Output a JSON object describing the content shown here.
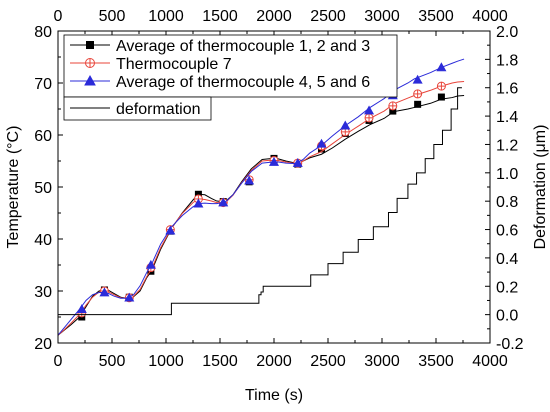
{
  "chart_data": {
    "type": "line",
    "xlabel": "Time (s)",
    "ylabel_left": "Temperature (°C)",
    "ylabel_right": "Deformation (μm)",
    "xlim": [
      0,
      4000
    ],
    "ylim_left": [
      20,
      80
    ],
    "ylim_right": [
      -0.2,
      2.0
    ],
    "x_ticks": [
      0,
      500,
      1000,
      1500,
      2000,
      2500,
      3000,
      3500,
      4000
    ],
    "y_left_ticks": [
      20,
      30,
      40,
      50,
      60,
      70,
      80
    ],
    "y_right_ticks": [
      -0.2,
      0.0,
      0.2,
      0.4,
      0.6,
      0.8,
      1.0,
      1.2,
      1.4,
      1.6,
      1.8,
      2.0
    ],
    "top_axis_mirrors_x": true,
    "grid": false,
    "legend_top": {
      "placement": "top-left",
      "entries": [
        "Average of thermocouple 1, 2 and 3",
        "Thermocouple 7",
        "Average of thermocouple 4, 5 and 6"
      ]
    },
    "legend_bottom": {
      "placement": "upper-left",
      "entries": [
        "deformation"
      ]
    },
    "series": [
      {
        "name": "Average of thermocouple 1, 2 and 3",
        "axis": "left",
        "color": "#000000",
        "marker": "square",
        "x": [
          0,
          60,
          120,
          200,
          260,
          320,
          380,
          430,
          470,
          520,
          580,
          640,
          700,
          760,
          820,
          870,
          950,
          1050,
          1150,
          1250,
          1300,
          1360,
          1420,
          1470,
          1520,
          1560,
          1620,
          1700,
          1790,
          1890,
          1990,
          2040,
          2110,
          2200,
          2270,
          2330,
          2440,
          2540,
          2660,
          2780,
          2890,
          3020,
          3110,
          3240,
          3300,
          3450,
          3550,
          3650,
          3700,
          3760
        ],
        "y": [
          21.5,
          22.5,
          23.5,
          25,
          27,
          29,
          30,
          30.2,
          30.1,
          29.5,
          28.8,
          28.6,
          28.9,
          30,
          32.5,
          34,
          38,
          42,
          45,
          47.5,
          48.6,
          48.5,
          47.8,
          47.3,
          47.2,
          47.4,
          48.5,
          51,
          53.5,
          55.3,
          55.5,
          55.4,
          55,
          54.6,
          55,
          55.6,
          56.3,
          57.5,
          59.2,
          60.7,
          62,
          63.2,
          64.5,
          65,
          65.3,
          66.1,
          66.9,
          67.2,
          67.5,
          67.6
        ],
        "markers_x": [
          220,
          430,
          660,
          860,
          1040,
          1300,
          1530,
          1770,
          2000,
          2220,
          2440,
          2660,
          2880,
          3100,
          3330,
          3550
        ],
        "markers_y": [
          25,
          30.2,
          28.8,
          33.8,
          41.5,
          48.6,
          47.2,
          51,
          55.5,
          54.4,
          57.3,
          60.3,
          62.8,
          64.6,
          65.9,
          67.3
        ]
      },
      {
        "name": "Thermocouple 7",
        "axis": "left",
        "color": "#e8443a",
        "marker": "circle-plus",
        "x": [
          0,
          60,
          120,
          200,
          260,
          320,
          380,
          430,
          470,
          520,
          580,
          640,
          700,
          760,
          820,
          870,
          950,
          1050,
          1150,
          1250,
          1300,
          1360,
          1420,
          1470,
          1520,
          1560,
          1620,
          1700,
          1790,
          1890,
          1990,
          2040,
          2110,
          2200,
          2270,
          2330,
          2440,
          2540,
          2660,
          2780,
          2890,
          3020,
          3110,
          3240,
          3300,
          3450,
          3550,
          3650,
          3700,
          3760
        ],
        "y": [
          21.5,
          22.6,
          23.8,
          25.5,
          27.3,
          28.8,
          29.8,
          30,
          29.8,
          29.3,
          28.7,
          28.6,
          29,
          30.3,
          32.7,
          34.4,
          38.3,
          42.1,
          44.9,
          47,
          47.7,
          47.6,
          47.3,
          47,
          47,
          47.2,
          48.4,
          50.8,
          53.2,
          55,
          55.2,
          55.1,
          54.8,
          54.5,
          55,
          55.8,
          56.8,
          58.3,
          60.1,
          61.7,
          63.2,
          64.6,
          66,
          67.1,
          67.6,
          68.6,
          69.4,
          70,
          70.2,
          70.3
        ],
        "markers_x": [
          220,
          430,
          660,
          860,
          1040,
          1300,
          1530,
          1770,
          2000,
          2220,
          2440,
          2660,
          2880,
          3100,
          3330,
          3550
        ],
        "markers_y": [
          25.8,
          30,
          28.7,
          34.5,
          41.8,
          47.7,
          47,
          51.4,
          55.1,
          54.6,
          57.9,
          60.6,
          63.3,
          65.6,
          67.9,
          69.4
        ]
      },
      {
        "name": "Average of thermocouple 4, 5 and 6",
        "axis": "left",
        "color": "#2b2bd9",
        "marker": "triangle",
        "x": [
          0,
          60,
          120,
          200,
          260,
          320,
          380,
          430,
          470,
          520,
          580,
          640,
          700,
          760,
          820,
          870,
          950,
          1050,
          1150,
          1250,
          1300,
          1360,
          1420,
          1470,
          1520,
          1560,
          1620,
          1700,
          1790,
          1890,
          1990,
          2040,
          2110,
          2200,
          2270,
          2330,
          2440,
          2540,
          2660,
          2780,
          2890,
          3020,
          3110,
          3240,
          3300,
          3450,
          3550,
          3650,
          3700,
          3760
        ],
        "y": [
          21.5,
          23,
          24.5,
          26.5,
          28.2,
          29.3,
          29.7,
          29.7,
          29.5,
          29,
          28.6,
          28.6,
          29.3,
          31,
          33.5,
          35.3,
          39,
          42.3,
          44.5,
          46.2,
          46.8,
          46.9,
          46.8,
          46.8,
          47,
          47.3,
          48.5,
          50.7,
          53,
          54.6,
          54.8,
          54.8,
          54.6,
          54.5,
          55.3,
          56.5,
          58,
          59.8,
          61.8,
          63.5,
          65.3,
          67,
          68.6,
          70,
          70.8,
          72,
          73,
          73.8,
          74.2,
          74.6
        ],
        "markers_x": [
          220,
          430,
          660,
          860,
          1040,
          1300,
          1530,
          1770,
          2000,
          2220,
          2440,
          2660,
          2880,
          3100,
          3330,
          3550
        ],
        "markers_y": [
          26.5,
          29.7,
          28.7,
          35,
          41.6,
          46.8,
          47,
          51.2,
          54.8,
          54.6,
          58.3,
          61.8,
          64.7,
          67.6,
          70.6,
          73
        ]
      },
      {
        "name": "deformation",
        "axis": "right",
        "color": "#000000",
        "marker": "none",
        "step": true,
        "x": [
          0,
          1050,
          1050,
          1860,
          1860,
          1880,
          1880,
          1900,
          1900,
          2340,
          2340,
          2500,
          2500,
          2640,
          2640,
          2780,
          2780,
          2920,
          2920,
          3060,
          3060,
          3140,
          3140,
          3240,
          3240,
          3320,
          3320,
          3400,
          3400,
          3480,
          3480,
          3560,
          3560,
          3640,
          3640,
          3700,
          3700,
          3740
        ],
        "y": [
          0.0,
          0.0,
          0.08,
          0.08,
          0.14,
          0.14,
          0.16,
          0.16,
          0.2,
          0.2,
          0.28,
          0.28,
          0.36,
          0.36,
          0.44,
          0.44,
          0.53,
          0.53,
          0.62,
          0.62,
          0.72,
          0.72,
          0.82,
          0.82,
          0.92,
          0.92,
          1.0,
          1.0,
          1.1,
          1.1,
          1.2,
          1.2,
          1.3,
          1.3,
          1.45,
          1.45,
          1.6,
          1.6
        ]
      }
    ]
  }
}
